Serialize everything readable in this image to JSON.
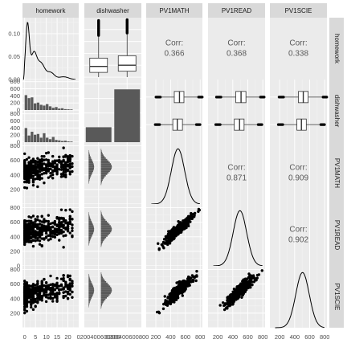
{
  "variables": [
    "homework",
    "dishwasher",
    "PV1MATH",
    "PV1READ",
    "PV1SCIE"
  ],
  "chart_data": {
    "type": "scatter-matrix",
    "correlations": [
      {
        "row": "homework",
        "col": "PV1MATH",
        "label": "Corr:",
        "value": "0.366"
      },
      {
        "row": "homework",
        "col": "PV1READ",
        "label": "Corr:",
        "value": "0.368"
      },
      {
        "row": "homework",
        "col": "PV1SCIE",
        "label": "Corr:",
        "value": "0.338"
      },
      {
        "row": "PV1MATH",
        "col": "PV1READ",
        "label": "Corr:",
        "value": "0.871"
      },
      {
        "row": "PV1MATH",
        "col": "PV1SCIE",
        "label": "Corr:",
        "value": "0.909"
      },
      {
        "row": "PV1READ",
        "col": "PV1SCIE",
        "label": "Corr:",
        "value": "0.902"
      }
    ],
    "axes": {
      "homework": {
        "range": [
          -1,
          25
        ],
        "ticks": [
          0,
          5,
          10,
          15,
          20
        ],
        "density_ticks": [
          0.0,
          0.05,
          0.1
        ],
        "density_range": [
          0,
          0.135
        ]
      },
      "dishwasher": {
        "range": [
          0,
          2
        ],
        "count_ticks": [
          0,
          200,
          400,
          600,
          800
        ],
        "count_range": [
          0,
          860
        ]
      },
      "score": {
        "range": [
          70,
          830
        ],
        "ticks": [
          200,
          400,
          600,
          800
        ],
        "y_ticks": [
          0,
          200,
          400,
          600,
          800
        ],
        "y_range": [
          0,
          850
        ]
      }
    },
    "tick_labels": {
      "homework_x": [
        "0",
        "5",
        "10",
        "15",
        "20"
      ],
      "homework_density_y": [
        "0.10",
        "0.05",
        "0.00"
      ],
      "dishwasher_x": [
        "0200400600800",
        "0200400600800"
      ],
      "dishwasher_y_top": [
        "800",
        "600",
        "400",
        "200",
        "0"
      ],
      "dishwasher_y_bottom": [
        "800",
        "600",
        "400",
        "200",
        "0"
      ],
      "score_x": [
        "200",
        "400",
        "600",
        "800"
      ],
      "pv1math_y": [
        "800",
        "600",
        "400",
        "200"
      ],
      "pv1read_y": [
        "800",
        "600",
        "400",
        "200",
        "0"
      ],
      "pv1scie_y": [
        "800",
        "600",
        "400",
        "200"
      ]
    },
    "dishwasher_bar_counts": {
      "group_1": 205,
      "group_2": 725
    },
    "boxplots_homework_by_dishwasher": [
      {
        "group": 1,
        "q1": 2,
        "median": 4.5,
        "q3": 8,
        "whisker_low": 0,
        "whisker_high": 17
      },
      {
        "group": 2,
        "q1": 2.5,
        "median": 5,
        "q3": 9,
        "whisker_low": 0,
        "whisker_high": 18
      }
    ],
    "boxplots_score_by_dishwasher": {
      "PV1MATH": [
        {
          "group": 1,
          "q1": 430,
          "median": 490,
          "q3": 560,
          "whisker_low": 260,
          "whisker_high": 740
        },
        {
          "group": 2,
          "q1": 450,
          "median": 520,
          "q3": 580,
          "whisker_low": 270,
          "whisker_high": 770
        }
      ],
      "PV1READ": [
        {
          "group": 1,
          "q1": 420,
          "median": 490,
          "q3": 550,
          "whisker_low": 240,
          "whisker_high": 730
        },
        {
          "group": 2,
          "q1": 440,
          "median": 510,
          "q3": 575,
          "whisker_low": 250,
          "whisker_high": 760
        }
      ],
      "PV1SCIE": [
        {
          "group": 1,
          "q1": 430,
          "median": 490,
          "q3": 555,
          "whisker_low": 250,
          "whisker_high": 740
        },
        {
          "group": 2,
          "q1": 450,
          "median": 515,
          "q3": 580,
          "whisker_low": 260,
          "whisker_high": 770
        }
      ]
    }
  }
}
